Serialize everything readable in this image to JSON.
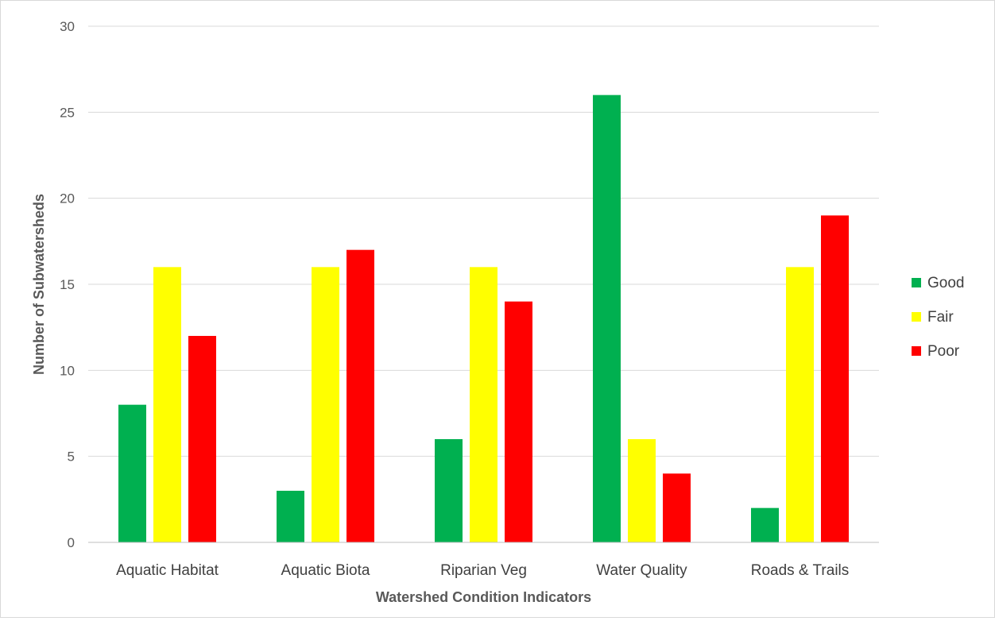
{
  "chart_data": {
    "type": "bar",
    "title": "",
    "xlabel": "Watershed Condition Indicators",
    "ylabel": "Number of Subwatersheds",
    "ylim": [
      0,
      30
    ],
    "yticks": [
      "0",
      "5",
      "10",
      "15",
      "20",
      "25",
      "30"
    ],
    "categories": [
      "Aquatic Habitat",
      "Aquatic Biota",
      "Riparian Veg",
      "Water Quality",
      "Roads & Trails"
    ],
    "series": [
      {
        "name": "Good",
        "color": "#00b050",
        "values": [
          8,
          3,
          6,
          26,
          2
        ]
      },
      {
        "name": "Fair",
        "color": "#ffff00",
        "values": [
          16,
          16,
          16,
          6,
          16
        ]
      },
      {
        "name": "Poor",
        "color": "#ff0000",
        "values": [
          12,
          17,
          14,
          4,
          19
        ]
      }
    ],
    "grid": true,
    "legend_position": "right"
  }
}
